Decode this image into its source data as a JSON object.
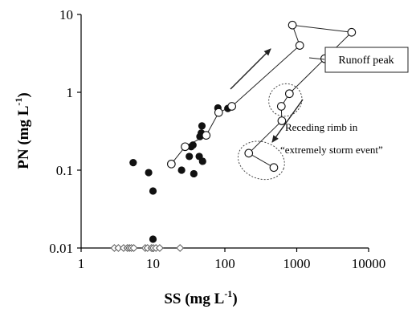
{
  "chart_data": {
    "type": "scatter",
    "xscale": "log",
    "yscale": "log",
    "xlim": [
      1,
      10000
    ],
    "ylim": [
      0.01,
      10
    ],
    "xlabel": "SS (mg L",
    "xlabel_sup": "-1",
    "xlabel_end": ")",
    "ylabel": "PN (mg L",
    "ylabel_sup": "-1",
    "ylabel_end": ")",
    "xticks": [
      {
        "value": 1,
        "label": "1"
      },
      {
        "value": 10,
        "label": "10"
      },
      {
        "value": 100,
        "label": "100"
      },
      {
        "value": 1000,
        "label": "1000"
      },
      {
        "value": 10000,
        "label": "10000"
      }
    ],
    "yticks": [
      {
        "value": 0.01,
        "label": "0.01"
      },
      {
        "value": 0.1,
        "label": "0.1"
      },
      {
        "value": 1,
        "label": "1"
      },
      {
        "value": 10,
        "label": "10"
      }
    ],
    "series": [
      {
        "marker": "filled-circle",
        "color": "#111111",
        "points": [
          [
            5.3,
            0.125
          ],
          [
            8.7,
            0.093
          ],
          [
            10.0,
            0.054
          ],
          [
            10.0,
            0.013
          ],
          [
            25,
            0.1
          ],
          [
            32,
            0.15
          ],
          [
            34,
            0.2
          ],
          [
            36,
            0.21
          ],
          [
            37,
            0.09
          ],
          [
            44,
            0.15
          ],
          [
            45,
            0.27
          ],
          [
            47,
            0.3
          ],
          [
            48,
            0.37
          ],
          [
            49,
            0.13
          ],
          [
            80,
            0.63
          ],
          [
            110,
            0.62
          ]
        ]
      },
      {
        "marker": "open-diamond",
        "color": "#555555",
        "points": [
          [
            2.9,
            0.01
          ],
          [
            3.3,
            0.01
          ],
          [
            3.9,
            0.01
          ],
          [
            4.4,
            0.01
          ],
          [
            4.7,
            0.01
          ],
          [
            5.0,
            0.01
          ],
          [
            5.4,
            0.01
          ],
          [
            7.8,
            0.01
          ],
          [
            8.4,
            0.01
          ],
          [
            9.5,
            0.01
          ],
          [
            10.1,
            0.01
          ],
          [
            11.0,
            0.01
          ],
          [
            12.4,
            0.01
          ],
          [
            23.8,
            0.01
          ]
        ]
      },
      {
        "marker": "open-circle-connected",
        "color": "#111111",
        "points": [
          [
            18,
            0.12
          ],
          [
            28,
            0.2
          ],
          [
            55,
            0.28
          ],
          [
            82,
            0.55
          ],
          [
            125,
            0.66
          ],
          [
            1100,
            4.0
          ],
          [
            870,
            7.3
          ],
          [
            5800,
            5.9
          ],
          [
            2450,
            2.7
          ],
          [
            790,
            0.96
          ],
          [
            610,
            0.66
          ],
          [
            620,
            0.43
          ],
          [
            215,
            0.165
          ],
          [
            480,
            0.108
          ]
        ]
      }
    ],
    "annotations": [
      {
        "text": "Runoff peak",
        "boxed": true
      },
      {
        "text": "Receding rimb in"
      },
      {
        "text": "“extremely storm event”"
      }
    ]
  }
}
